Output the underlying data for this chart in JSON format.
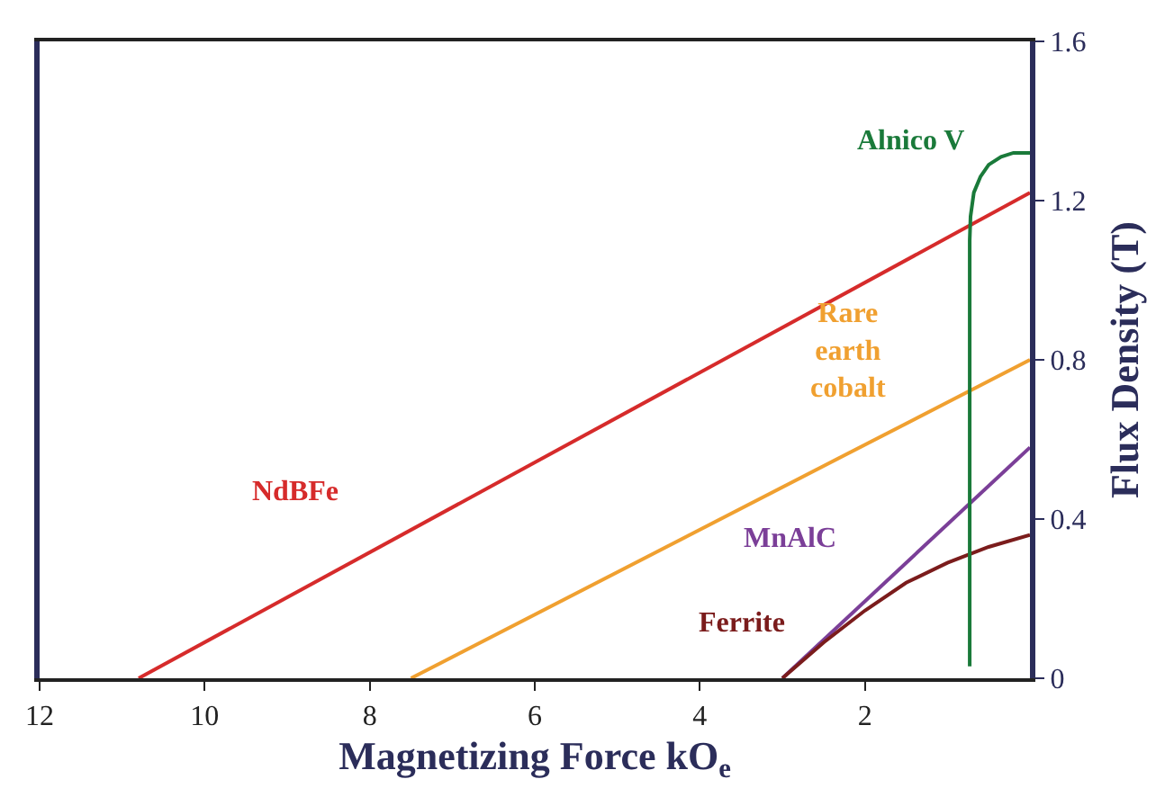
{
  "chart_data": {
    "type": "line",
    "xlabel": "Magnetizing Force kO$_{e}$",
    "ylabel": "Flux Density (T)",
    "xlim": [
      12,
      0
    ],
    "xticks": [
      12,
      10,
      8,
      6,
      4,
      2
    ],
    "ylim": [
      0,
      1.6
    ],
    "yticks": [
      0,
      0.4,
      0.8,
      1.2,
      1.6
    ],
    "legend": false,
    "marker": "none",
    "line_style": "solid",
    "series": [
      {
        "name": "NdBFe",
        "color": "#d62b2b",
        "x": [
          10.8,
          0
        ],
        "values": [
          0,
          1.22
        ]
      },
      {
        "name": "Rare earth cobalt",
        "color": "#f0a030",
        "x": [
          7.5,
          0
        ],
        "values": [
          0,
          0.8
        ]
      },
      {
        "name": "MnAlC",
        "color": "#7b3f98",
        "x": [
          3.0,
          0
        ],
        "values": [
          0,
          0.58
        ]
      },
      {
        "name": "Ferrite",
        "color": "#7b1c1c",
        "x": [
          3.0,
          2.5,
          2.0,
          1.5,
          1.0,
          0.5,
          0
        ],
        "values": [
          0,
          0.09,
          0.17,
          0.24,
          0.29,
          0.33,
          0.36
        ]
      },
      {
        "name": "Alnico V",
        "color": "#1a7a3a",
        "x": [
          0.73,
          0.73,
          0.72,
          0.68,
          0.6,
          0.5,
          0.35,
          0.2,
          0.1,
          0
        ],
        "values": [
          0.03,
          1.1,
          1.16,
          1.22,
          1.26,
          1.29,
          1.31,
          1.32,
          1.32,
          1.32
        ]
      }
    ]
  }
}
